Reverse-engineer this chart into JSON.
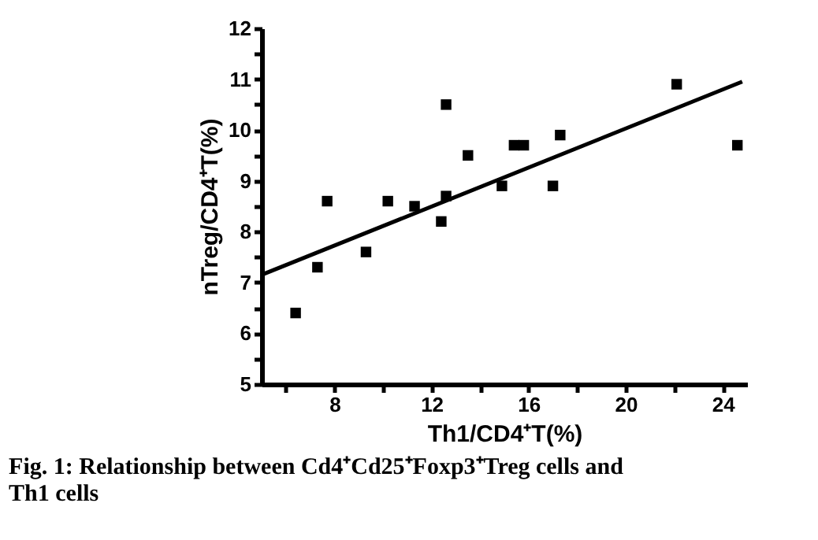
{
  "chart_data": {
    "type": "scatter",
    "xlabel": "Th1/CD4⁺T(%)",
    "ylabel": "nTreg/CD4⁺T(%)",
    "annotations": [
      "Fig. 1: Relationship between Cd4⁺Cd25⁺Foxp3⁺Treg cells and Th1 cells"
    ],
    "xlim": [
      5,
      25
    ],
    "ylim": [
      5,
      12
    ],
    "xticks": [
      {
        "value": 6,
        "label": null
      },
      8,
      {
        "value": 10,
        "label": null
      },
      12,
      {
        "value": 14,
        "label": null
      },
      16,
      {
        "value": 18,
        "label": null
      },
      20,
      {
        "value": 22,
        "label": null
      },
      24
    ],
    "yticks": [
      5,
      {
        "value": 5.5,
        "label": null
      },
      6,
      {
        "value": 6.5,
        "label": null
      },
      7,
      {
        "value": 7.5,
        "label": null
      },
      8,
      {
        "value": 8.5,
        "label": null
      },
      9,
      {
        "value": 9.5,
        "label": null
      },
      10,
      {
        "value": 10.5,
        "label": null
      },
      11,
      {
        "value": 11.5,
        "label": null
      },
      12
    ],
    "grid": false,
    "marker": "square",
    "series": [
      {
        "type": "scatter",
        "color": "#000000",
        "x": [
          6.4,
          7.3,
          7.7,
          9.3,
          10.2,
          11.3,
          12.4,
          12.6,
          12.6,
          13.5,
          14.9,
          15.4,
          15.8,
          17.0,
          17.3,
          22.1,
          24.6
        ],
        "values": [
          6.4,
          7.3,
          8.6,
          7.6,
          8.6,
          8.5,
          8.2,
          10.5,
          8.7,
          9.5,
          8.9,
          9.7,
          9.7,
          8.9,
          9.9,
          10.9,
          9.7
        ]
      },
      {
        "type": "line",
        "color": "#000000",
        "marker": "none",
        "line_style": "solid",
        "x": [
          5,
          24.8
        ],
        "values": [
          7.15,
          10.95
        ]
      }
    ]
  }
}
